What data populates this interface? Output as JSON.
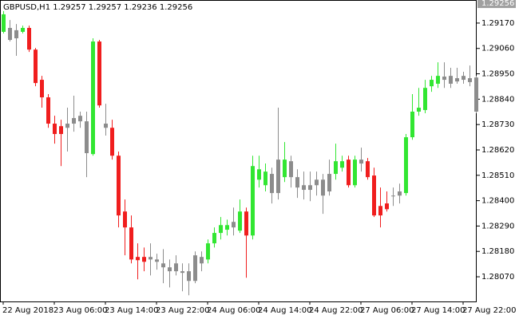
{
  "chart_data": {
    "type": "candlestick",
    "title": "GBPUSD,H1  1.29257 1.29257 1.29236 1.29256",
    "current_price": 1.29256,
    "x": [
      "22 Aug 2018",
      null,
      null,
      null,
      null,
      null,
      null,
      null,
      "23 Aug 06:00",
      null,
      null,
      null,
      null,
      null,
      null,
      null,
      "23 Aug 14:00",
      null,
      null,
      null,
      null,
      null,
      null,
      null,
      "23 Aug 22:00",
      null,
      null,
      null,
      null,
      null,
      null,
      null,
      "24 Aug 06:00",
      null,
      null,
      null,
      null,
      null,
      null,
      null,
      "24 Aug 14:00",
      null,
      null,
      null,
      null,
      null,
      null,
      null,
      "24 Aug 22:00",
      null,
      null,
      null,
      null,
      null,
      null,
      null,
      "27 Aug 06:00",
      null,
      null,
      null,
      null,
      null,
      null,
      null,
      "27 Aug 14:00",
      null,
      null,
      null,
      null,
      null,
      null,
      null,
      "27 Aug 22:00",
      null,
      null
    ],
    "open": [
      1.29132,
      1.29149,
      1.29139,
      1.29132,
      1.29149,
      1.29055,
      1.28924,
      1.28848,
      1.28734,
      1.28723,
      1.28716,
      1.28734,
      1.28768,
      1.28744,
      1.28602,
      1.2909,
      1.28734,
      1.28716,
      1.28595,
      1.28353,
      1.28284,
      1.28156,
      1.28156,
      1.28145,
      1.28135,
      1.28128,
      1.28111,
      1.28128,
      1.28094,
      1.28094,
      1.28052,
      1.28128,
      1.28145,
      1.28215,
      1.2826,
      1.28274,
      1.28284,
      1.2827,
      1.28353,
      1.28249,
      1.28491,
      1.28467,
      1.28516,
      1.28433,
      1.28502,
      1.28571,
      1.28502,
      1.28447,
      1.28467,
      1.28467,
      1.28491,
      1.2844,
      1.28516,
      1.28543,
      1.28578,
      1.28467,
      1.28578,
      1.28571,
      1.28509,
      1.28377,
      1.28388,
      1.28422,
      1.28422,
      1.28433,
      1.28675,
      1.28786,
      1.28793,
      1.28896,
      1.28907,
      1.28938,
      1.28941,
      1.28931,
      1.28941,
      1.28931,
      1.28934
    ],
    "high": [
      1.29222,
      1.29183,
      1.29166,
      1.29159,
      1.29159,
      1.29062,
      1.28941,
      1.28862,
      1.28768,
      1.28751,
      1.28803,
      1.28855,
      1.28786,
      1.28786,
      1.29104,
      1.29097,
      1.2882,
      1.28751,
      1.28613,
      1.28405,
      1.28336,
      1.28215,
      1.28197,
      1.28215,
      1.2817,
      1.2819,
      1.28145,
      1.28163,
      1.28128,
      1.28128,
      1.2818,
      1.2818,
      1.28232,
      1.28284,
      1.28329,
      1.28318,
      1.2837,
      1.28405,
      1.2837,
      1.28595,
      1.28595,
      1.28561,
      1.28543,
      1.28803,
      1.28654,
      1.28595,
      1.28536,
      1.28526,
      1.28526,
      1.28526,
      1.28516,
      1.28578,
      1.28647,
      1.28595,
      1.28595,
      1.28595,
      1.2863,
      1.28585,
      1.28543,
      1.28457,
      1.2844,
      1.28457,
      1.28474,
      1.28689,
      1.28862,
      1.28889,
      1.28924,
      1.28941,
      1.29,
      1.29,
      1.28976,
      1.28976,
      1.28959,
      1.28986,
      1.28941
    ],
    "low": [
      1.29125,
      1.2909,
      1.29028,
      1.29125,
      1.29045,
      1.28896,
      1.28803,
      1.28716,
      1.28647,
      1.2855,
      1.28613,
      1.28699,
      1.28716,
      1.28502,
      1.28595,
      1.28803,
      1.28682,
      1.28578,
      1.28284,
      1.28163,
      1.28128,
      1.28059,
      1.28094,
      1.28076,
      1.28101,
      1.28042,
      1.28024,
      1.28076,
      1.28007,
      1.2799,
      1.28042,
      1.28094,
      1.28128,
      1.28197,
      1.28232,
      1.28249,
      1.28249,
      1.2826,
      1.28066,
      1.28232,
      1.28457,
      1.2844,
      1.28388,
      1.28405,
      1.28481,
      1.28457,
      1.28412,
      1.28405,
      1.28398,
      1.28422,
      1.28343,
      1.28422,
      1.28491,
      1.28526,
      1.28457,
      1.28457,
      1.28526,
      1.28491,
      1.28329,
      1.28284,
      1.28353,
      1.28377,
      1.28388,
      1.28422,
      1.28664,
      1.28768,
      1.28779,
      1.28872,
      1.28889,
      1.28889,
      1.28889,
      1.28907,
      1.28907,
      1.28896,
      1.28779
    ],
    "close": [
      1.29208,
      1.29097,
      1.29104,
      1.29149,
      1.29055,
      1.2891,
      1.28848,
      1.28734,
      1.28689,
      1.28689,
      1.28734,
      1.28758,
      1.28744,
      1.28606,
      1.2909,
      1.28813,
      1.28716,
      1.28595,
      1.28336,
      1.28284,
      1.28145,
      1.28142,
      1.28135,
      1.28156,
      1.28145,
      1.28111,
      1.28094,
      1.28094,
      1.28087,
      1.28052,
      1.28163,
      1.28156,
      1.28215,
      1.2826,
      1.28294,
      1.28294,
      1.28308,
      1.28353,
      1.28249,
      1.2855,
      1.28536,
      1.28526,
      1.28433,
      1.28578,
      1.28578,
      1.28502,
      1.28457,
      1.28467,
      1.28447,
      1.28491,
      1.28422,
      1.28516,
      1.28571,
      1.28571,
      1.28467,
      1.28578,
      1.28561,
      1.28502,
      1.28336,
      1.28336,
      1.28363,
      1.28422,
      1.2844,
      1.28675,
      1.28786,
      1.28803,
      1.28889,
      1.28924,
      1.28941,
      1.28924,
      1.28907,
      1.28917,
      1.28924,
      1.28914,
      1.28786
    ],
    "palette": {
      "up": "#32e632",
      "down": "#f01e1e",
      "flat": "#8c8c8c"
    },
    "candle_color": [
      "up",
      "flat",
      "flat",
      "up",
      "down",
      "down",
      "down",
      "down",
      "down",
      "down",
      "flat",
      "flat",
      "flat",
      "flat",
      "up",
      "down",
      "flat",
      "down",
      "down",
      "down",
      "down",
      "down",
      "down",
      "flat",
      "flat",
      "flat",
      "flat",
      "flat",
      "flat",
      "flat",
      "flat",
      "flat",
      "up",
      "up",
      "up",
      "up",
      "flat",
      "up",
      "down",
      "up",
      "up",
      "up",
      "flat",
      "flat",
      "up",
      "flat",
      "flat",
      "flat",
      "flat",
      "flat",
      "flat",
      "flat",
      "up",
      "up",
      "down",
      "up",
      "flat",
      "down",
      "down",
      "down",
      "down",
      "flat",
      "flat",
      "up",
      "up",
      "up",
      "up",
      "up",
      "up",
      "flat",
      "flat",
      "flat",
      "flat",
      "flat",
      "flat"
    ],
    "ylim": [
      1.27963,
      1.2927
    ],
    "yticks": [
      {
        "value": 1.2917,
        "label": "1.29170"
      },
      {
        "value": 1.2906,
        "label": "1.29060"
      },
      {
        "value": 1.2895,
        "label": "1.28950"
      },
      {
        "value": 1.2884,
        "label": "1.28840"
      },
      {
        "value": 1.2873,
        "label": "1.28730"
      },
      {
        "value": 1.2862,
        "label": "1.28620"
      },
      {
        "value": 1.2851,
        "label": "1.28510"
      },
      {
        "value": 1.284,
        "label": "1.28400"
      },
      {
        "value": 1.2829,
        "label": "1.28290"
      },
      {
        "value": 1.2818,
        "label": "1.28180"
      },
      {
        "value": 1.2807,
        "label": "1.28070"
      }
    ],
    "grid": false
  }
}
